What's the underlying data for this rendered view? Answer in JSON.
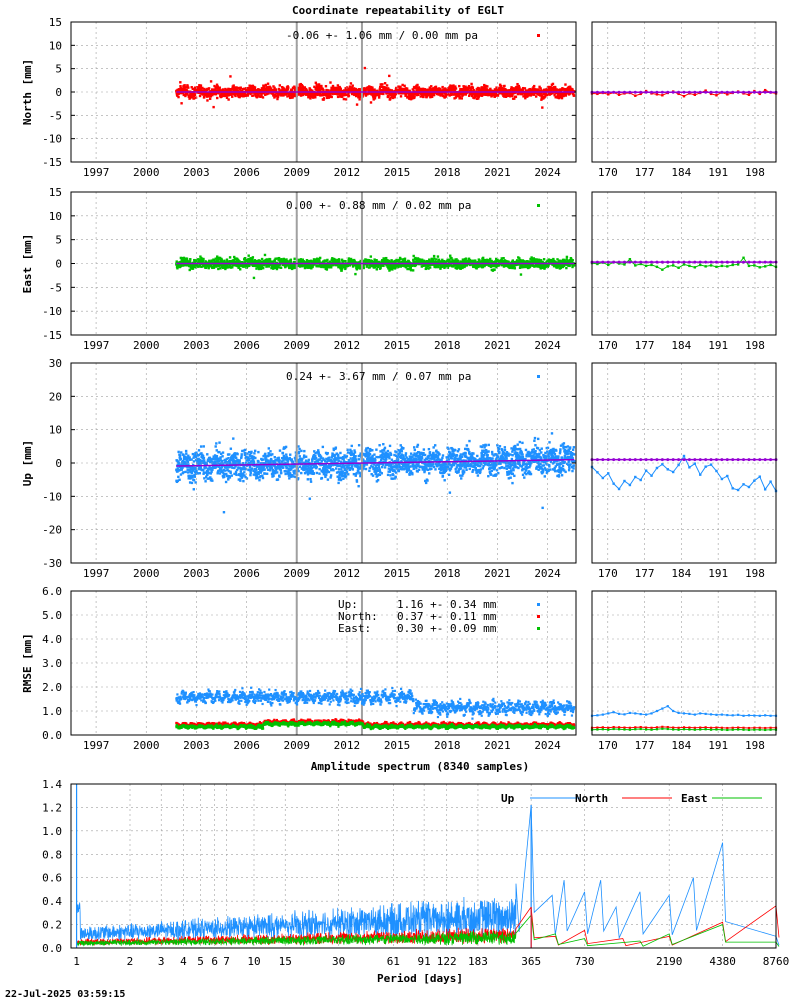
{
  "title": "Coordinate repeatability of EGLT",
  "timestamp": "22-Jul-2025 03:59:15",
  "colors": {
    "north": "#ff0000",
    "east": "#00c000",
    "up": "#1e90ff",
    "model": "#9400d3",
    "ref": "#a0a0a0",
    "grid": "#a0a0a0"
  },
  "chart_data": [
    {
      "id": "north",
      "type": "scatter",
      "ylabel": "North [mm]",
      "ylim": [
        -15,
        15
      ],
      "yticks": [
        -15,
        -10,
        -5,
        0,
        5,
        10,
        15
      ],
      "xlim": [
        1995.5,
        2025.7
      ],
      "xticks": [
        1997,
        2000,
        2003,
        2006,
        2009,
        2012,
        2015,
        2018,
        2021,
        2024
      ],
      "stats": "-0.06 +- 1.06 mm /  0.00 mm pa",
      "color": "north",
      "data_start": 2001.8,
      "data_end": 2025.6,
      "spread": 1.06,
      "trend": [
        0.0,
        0.0
      ],
      "epochs": [
        2009.0,
        2012.9
      ],
      "recent": {
        "xlim": [
          167,
          202
        ],
        "xticks": [
          170,
          177,
          184,
          191,
          198
        ],
        "values": [
          -0.3,
          -0.4,
          -0.2,
          -0.5,
          -0.1,
          -0.6,
          -0.3,
          -0.2,
          -0.8,
          -0.4,
          0.2,
          -0.3,
          -0.5,
          -0.7,
          -0.2,
          0.1,
          -0.4,
          -0.9,
          -0.3,
          -0.6,
          -0.2,
          0.3,
          -0.4,
          -0.7,
          -0.1,
          -0.5,
          -0.2,
          0.1,
          -0.3,
          -0.6,
          0.2,
          -0.4,
          0.4,
          -0.1,
          -0.3
        ],
        "fit": [
          -0.05,
          -0.05
        ]
      }
    },
    {
      "id": "east",
      "type": "scatter",
      "ylabel": "East [mm]",
      "ylim": [
        -15,
        15
      ],
      "yticks": [
        -15,
        -10,
        -5,
        0,
        5,
        10,
        15
      ],
      "xlim": [
        1995.5,
        2025.7
      ],
      "xticks": [
        1997,
        2000,
        2003,
        2006,
        2009,
        2012,
        2015,
        2018,
        2021,
        2024
      ],
      "stats": " 0.00 +- 0.88 mm /  0.02 mm pa",
      "color": "east",
      "data_start": 2001.8,
      "data_end": 2025.6,
      "spread": 0.88,
      "trend": [
        0.0,
        0.0
      ],
      "epochs": [
        2009.0,
        2012.9
      ],
      "recent": {
        "xlim": [
          167,
          202
        ],
        "xticks": [
          170,
          177,
          184,
          191,
          198
        ],
        "values": [
          0.1,
          -0.1,
          0.2,
          -0.3,
          0.3,
          0.0,
          -0.2,
          0.9,
          -0.4,
          -0.1,
          -0.5,
          -0.3,
          -0.7,
          -1.3,
          -0.6,
          -0.4,
          -0.9,
          -0.2,
          -0.5,
          -0.8,
          -0.3,
          -0.6,
          -0.4,
          -0.7,
          -0.5,
          -0.6,
          -0.3,
          -0.2,
          1.2,
          -0.5,
          -0.4,
          -0.8,
          -0.6,
          -0.3,
          -0.7
        ],
        "fit": [
          0.3,
          0.3
        ]
      }
    },
    {
      "id": "up",
      "type": "scatter",
      "ylabel": "Up [mm]",
      "ylim": [
        -30,
        30
      ],
      "yticks": [
        -30,
        -20,
        -10,
        0,
        10,
        20,
        30
      ],
      "xlim": [
        1995.5,
        2025.7
      ],
      "xticks": [
        1997,
        2000,
        2003,
        2006,
        2009,
        2012,
        2015,
        2018,
        2021,
        2024
      ],
      "stats": " 0.24 +- 3.67 mm /  0.07 mm pa",
      "color": "up",
      "data_start": 2001.8,
      "data_end": 2025.6,
      "spread": 3.67,
      "trend": [
        -0.9,
        1.0
      ],
      "epochs": [
        2009.0,
        2012.9
      ],
      "recent": {
        "xlim": [
          167,
          202
        ],
        "xticks": [
          170,
          177,
          184,
          191,
          198
        ],
        "values": [
          -1.2,
          -2.8,
          -4.5,
          -3.1,
          -6.2,
          -7.8,
          -5.4,
          -6.6,
          -4.2,
          -5.1,
          -2.3,
          -3.8,
          -1.5,
          -0.4,
          -1.9,
          -2.7,
          -0.6,
          2.1,
          -1.3,
          -0.2,
          -3.5,
          -1.1,
          -0.5,
          -2.4,
          -4.8,
          -3.9,
          -7.6,
          -8.1,
          -6.4,
          -7.2,
          -5.3,
          -4.1,
          -7.9,
          -5.6,
          -8.4
        ],
        "fit": [
          1.0,
          1.0
        ]
      }
    }
  ],
  "rmse": {
    "ylabel": "RMSE [mm]",
    "ylim": [
      0,
      6
    ],
    "yticks": [
      "0.0",
      "1.0",
      "2.0",
      "3.0",
      "4.0",
      "5.0",
      "6.0"
    ],
    "xlim": [
      1995.5,
      2025.7
    ],
    "xticks": [
      1997,
      2000,
      2003,
      2006,
      2009,
      2012,
      2015,
      2018,
      2021,
      2024
    ],
    "legend": [
      {
        "label": "Up:",
        "value": "1.16 +- 0.34 mm",
        "color": "up"
      },
      {
        "label": "North:",
        "value": "0.37 +- 0.11 mm",
        "color": "north"
      },
      {
        "label": "East:",
        "value": "0.30 +- 0.09 mm",
        "color": "east"
      }
    ],
    "recent": {
      "xlim": [
        167,
        202
      ],
      "xticks": [
        170,
        177,
        184,
        191,
        198
      ],
      "up": [
        0.8,
        0.82,
        0.85,
        0.9,
        0.95,
        0.88,
        0.86,
        0.92,
        0.9,
        0.87,
        0.85,
        0.9,
        1.0,
        1.1,
        1.2,
        1.0,
        0.92,
        0.9,
        0.88,
        0.85,
        0.9,
        0.88,
        0.86,
        0.84,
        0.85,
        0.83,
        0.82,
        0.84,
        0.8,
        0.82,
        0.81,
        0.8,
        0.82,
        0.8,
        0.8
      ],
      "north": [
        0.3,
        0.31,
        0.32,
        0.3,
        0.33,
        0.32,
        0.31,
        0.3,
        0.32,
        0.33,
        0.31,
        0.3,
        0.32,
        0.34,
        0.33,
        0.31,
        0.3,
        0.32,
        0.31,
        0.3,
        0.31,
        0.32,
        0.3,
        0.31,
        0.3,
        0.29,
        0.3,
        0.31,
        0.3,
        0.29,
        0.3,
        0.3,
        0.29,
        0.3,
        0.3
      ],
      "east": [
        0.22,
        0.23,
        0.24,
        0.22,
        0.25,
        0.24,
        0.23,
        0.22,
        0.24,
        0.25,
        0.23,
        0.22,
        0.24,
        0.26,
        0.25,
        0.23,
        0.22,
        0.24,
        0.23,
        0.22,
        0.23,
        0.24,
        0.22,
        0.23,
        0.22,
        0.21,
        0.22,
        0.23,
        0.22,
        0.21,
        0.22,
        0.22,
        0.21,
        0.22,
        0.22
      ]
    }
  },
  "spectrum": {
    "title": "Amplitude spectrum (8340 samples)",
    "xlabel": "Period [days]",
    "type": "line",
    "ylim": [
      0,
      1.4
    ],
    "yticks": [
      "0.0",
      "0.2",
      "0.4",
      "0.6",
      "0.8",
      "1.0",
      "1.2",
      "1.4"
    ],
    "xlim": [
      0.93,
      8760
    ],
    "xticks": [
      "1",
      "2",
      "3",
      "4",
      "5",
      "6",
      "7",
      "10",
      "15",
      "30",
      "61",
      "91",
      "122",
      "183",
      "365",
      "730",
      "2190",
      "4380",
      "8760"
    ],
    "legend": [
      {
        "label": "Up",
        "color": "up"
      },
      {
        "label": "North",
        "color": "north"
      },
      {
        "label": "East",
        "color": "east"
      }
    ],
    "peaks": {
      "up": [
        [
          1.0,
          1.4
        ],
        [
          365,
          1.22
        ],
        [
          300,
          0.55
        ],
        [
          480,
          0.45
        ],
        [
          560,
          0.58
        ],
        [
          730,
          0.48
        ],
        [
          900,
          0.58
        ],
        [
          1100,
          0.35
        ],
        [
          1500,
          0.48
        ],
        [
          2190,
          0.45
        ],
        [
          3000,
          0.6
        ],
        [
          4380,
          0.9
        ],
        [
          8760,
          0.1
        ]
      ],
      "north": [
        [
          365,
          0.35
        ],
        [
          500,
          0.1
        ],
        [
          730,
          0.15
        ],
        [
          1200,
          0.08
        ],
        [
          2190,
          0.1
        ],
        [
          4380,
          0.22
        ],
        [
          8760,
          0.36
        ]
      ],
      "east": [
        [
          365,
          0.28
        ],
        [
          500,
          0.12
        ],
        [
          730,
          0.08
        ],
        [
          1500,
          0.06
        ],
        [
          2190,
          0.12
        ],
        [
          4380,
          0.2
        ],
        [
          8760,
          0.05
        ]
      ]
    }
  }
}
